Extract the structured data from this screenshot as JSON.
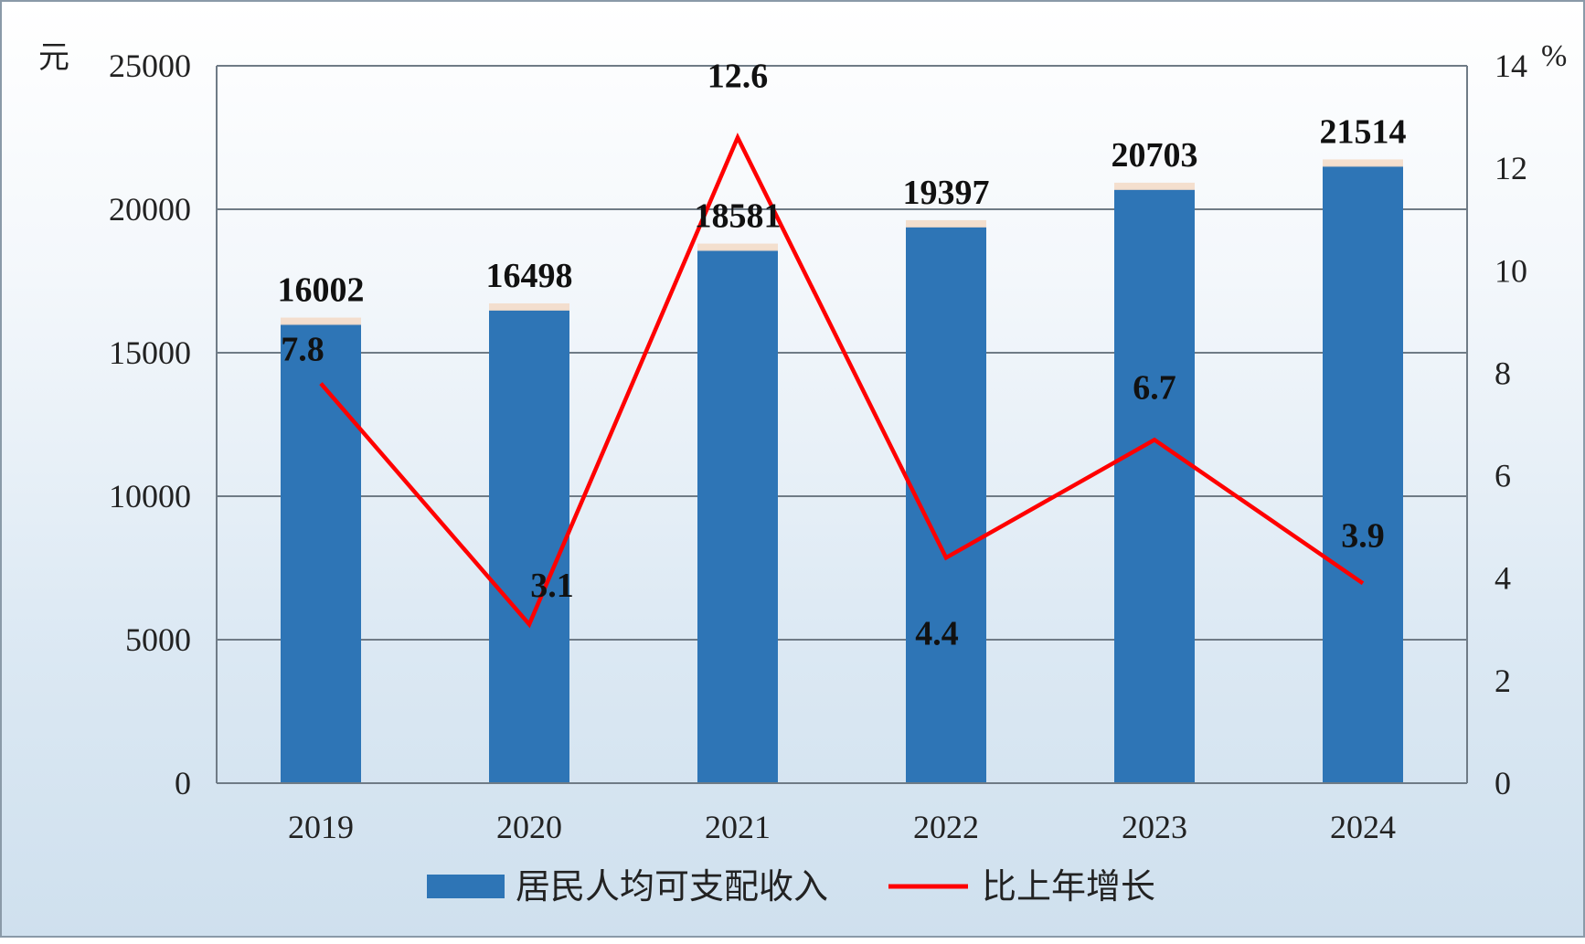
{
  "chart_data": {
    "type": "bar",
    "categories": [
      "2019",
      "2020",
      "2021",
      "2022",
      "2023",
      "2024"
    ],
    "series": [
      {
        "name": "居民人均可支配收入",
        "type": "bar",
        "axis": "left",
        "values": [
          16002,
          16498,
          18581,
          19397,
          20703,
          21514
        ]
      },
      {
        "name": "比上年增长",
        "type": "line",
        "axis": "right",
        "values": [
          7.8,
          3.1,
          12.6,
          4.4,
          6.7,
          3.9
        ]
      }
    ],
    "y_left": {
      "unit": "元",
      "lim": [
        0,
        25000
      ],
      "ticks": [
        "0",
        "5000",
        "10000",
        "15000",
        "20000",
        "25000"
      ]
    },
    "y_right": {
      "unit": "%",
      "lim": [
        0,
        14
      ],
      "ticks": [
        "0",
        "2",
        "4",
        "6",
        "8",
        "10",
        "12",
        "14"
      ]
    },
    "colors": {
      "bar": "#2e75b6",
      "line": "#ff0000",
      "grid": "#6f7b86"
    },
    "grid": true,
    "legend_position": "bottom"
  }
}
